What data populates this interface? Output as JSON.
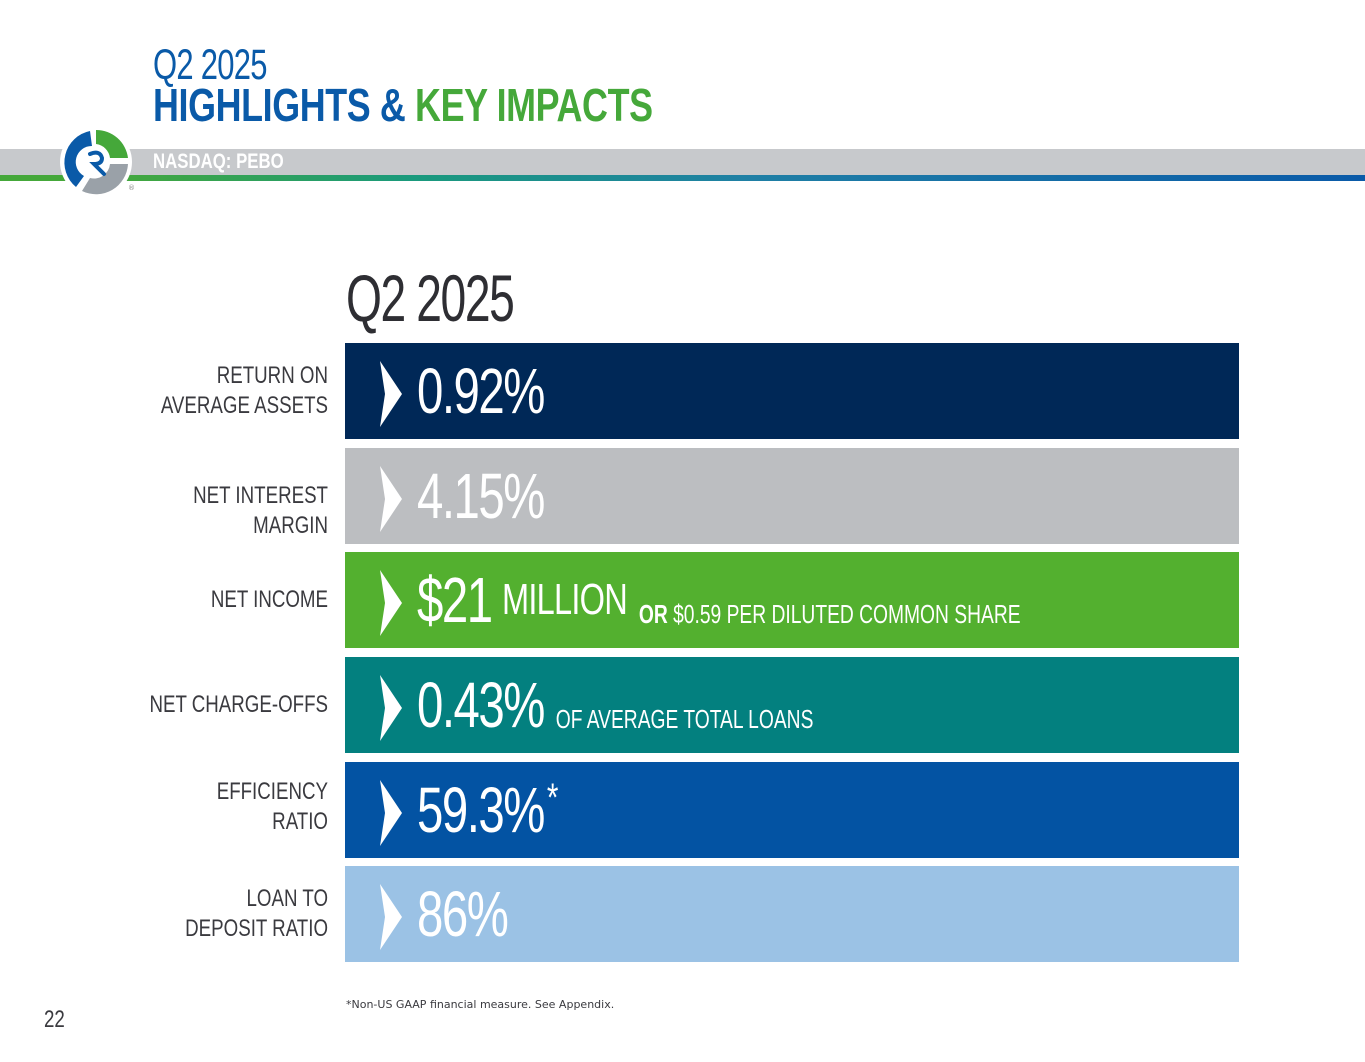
{
  "header": {
    "period": "Q2 2025",
    "title_part1": "HIGHLIGHTS &",
    "title_part2": "KEY IMPACTS",
    "ticker": "NASDAQ: PEBO"
  },
  "section": {
    "title": "Q2 2025"
  },
  "colors": {
    "navy": "#002857",
    "gray": "#bcbec1",
    "green": "#53b02f",
    "teal": "#03807f",
    "blue": "#0353a3",
    "light_blue": "#9bc2e5"
  },
  "metrics": [
    {
      "label_line1": "RETURN ON",
      "label_line2": "AVERAGE ASSETS",
      "value": "0.92%"
    },
    {
      "label_line1": "NET INTEREST MARGIN",
      "value": "4.15%"
    },
    {
      "label_line1": "NET INCOME",
      "value": "$21",
      "unit": "MILLION",
      "sub_bold": "OR",
      "sub_rest": "$0.59 PER DILUTED COMMON SHARE"
    },
    {
      "label_line1": "NET CHARGE-OFFS",
      "value": "0.43%",
      "sub_rest": "OF AVERAGE TOTAL LOANS"
    },
    {
      "label_line1": "EFFICIENCY",
      "label_line2": "RATIO",
      "value": "59.3%",
      "asterisk": "*"
    },
    {
      "label_line1": "LOAN TO",
      "label_line2": "DEPOSIT RATIO",
      "value": "86%"
    }
  ],
  "footnote": "*Non-US GAAP financial measure. See Appendix.",
  "page_number": "22"
}
